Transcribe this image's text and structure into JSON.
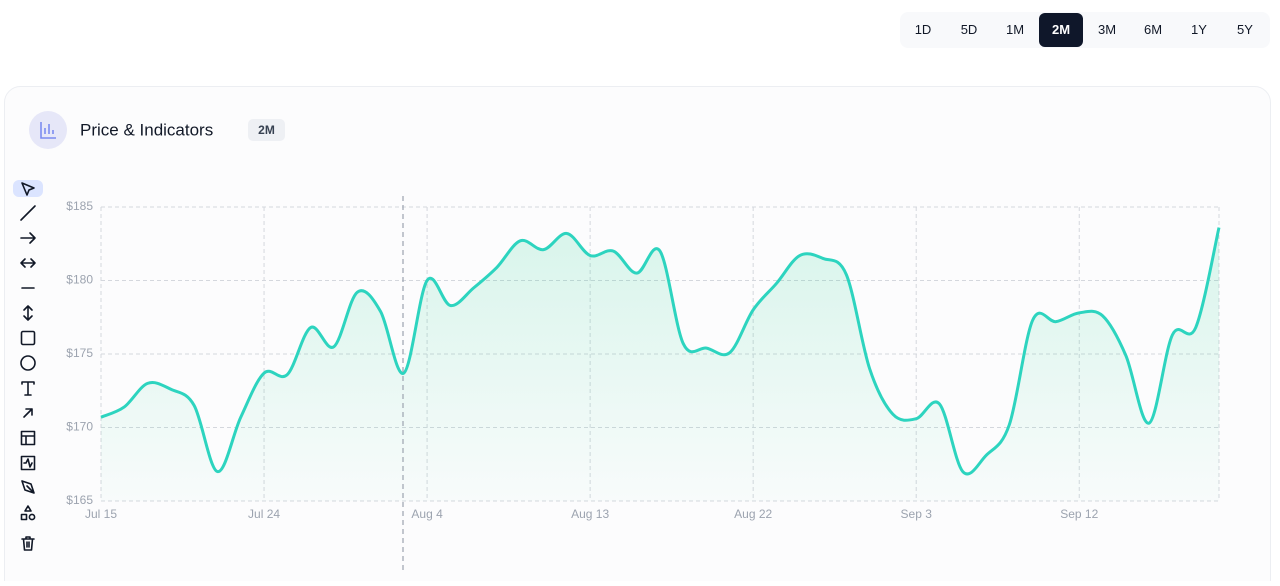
{
  "ranges": [
    {
      "label": "1D",
      "active": false
    },
    {
      "label": "5D",
      "active": false
    },
    {
      "label": "1M",
      "active": false
    },
    {
      "label": "2M",
      "active": true
    },
    {
      "label": "3M",
      "active": false
    },
    {
      "label": "6M",
      "active": false
    },
    {
      "label": "1Y",
      "active": false
    },
    {
      "label": "5Y",
      "active": false
    }
  ],
  "panel": {
    "title": "Price & Indicators",
    "badge": "2M"
  },
  "chart_data": {
    "type": "line",
    "categories": [
      "Jul 15",
      null,
      null,
      null,
      null,
      null,
      null,
      "Jul 24",
      null,
      null,
      null,
      null,
      null,
      null,
      "Aug 4",
      null,
      null,
      null,
      null,
      null,
      null,
      "Aug 13",
      null,
      null,
      null,
      null,
      null,
      null,
      "Aug 22",
      null,
      null,
      null,
      null,
      null,
      null,
      "Sep 3",
      null,
      null,
      null,
      null,
      null,
      null,
      "Sep 12",
      null,
      null,
      null,
      null,
      null,
      null
    ],
    "values": [
      170.7,
      171.4,
      173.0,
      172.6,
      171.5,
      167.0,
      170.7,
      173.7,
      173.6,
      176.8,
      175.5,
      179.2,
      177.9,
      173.7,
      180.0,
      178.3,
      179.5,
      180.9,
      182.7,
      182.1,
      183.2,
      181.7,
      182.0,
      180.5,
      182.0,
      175.7,
      175.4,
      175.1,
      178.0,
      179.8,
      181.7,
      181.5,
      180.4,
      174.0,
      170.9,
      170.6,
      171.6,
      167.0,
      168.1,
      170.2,
      177.3,
      177.2,
      177.8,
      177.6,
      174.9,
      170.3,
      176.3,
      176.8,
      183.6
    ],
    "color": "#2dd4bf",
    "ylim": [
      165,
      185
    ],
    "yticks": [
      {
        "value": 165,
        "label": "$165"
      },
      {
        "value": 170,
        "label": "$170"
      },
      {
        "value": 175,
        "label": "$175"
      },
      {
        "value": 180,
        "label": "$180"
      },
      {
        "value": 185,
        "label": "$185"
      }
    ],
    "grid": true
  }
}
